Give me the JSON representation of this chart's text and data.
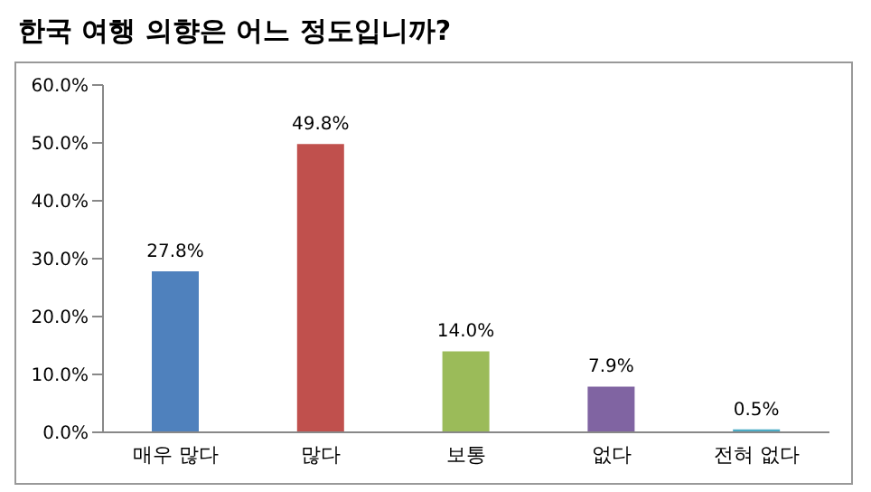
{
  "chart_data": {
    "type": "bar",
    "title": "한국 여행 의향은 어느 정도입니까?",
    "categories": [
      "매우 많다",
      "많다",
      "보통",
      "없다",
      "전혀 없다"
    ],
    "values": [
      27.8,
      49.8,
      14.0,
      7.9,
      0.5
    ],
    "colors": [
      "#4f81bd",
      "#c0504d",
      "#9bbb59",
      "#8064a2",
      "#4bacc6"
    ],
    "value_labels": [
      "27.8%",
      "49.8%",
      "14.0%",
      "7.9%",
      "0.5%"
    ],
    "ylim": [
      0,
      60
    ],
    "yticks": [
      {
        "value": 0,
        "label": "0.0%"
      },
      {
        "value": 10,
        "label": "10.0%"
      },
      {
        "value": 20,
        "label": "20.0%"
      },
      {
        "value": 30,
        "label": "30.0%"
      },
      {
        "value": 40,
        "label": "40.0%"
      },
      {
        "value": 50,
        "label": "50.0%"
      },
      {
        "value": 60,
        "label": "60.0%"
      }
    ],
    "grid": false
  }
}
